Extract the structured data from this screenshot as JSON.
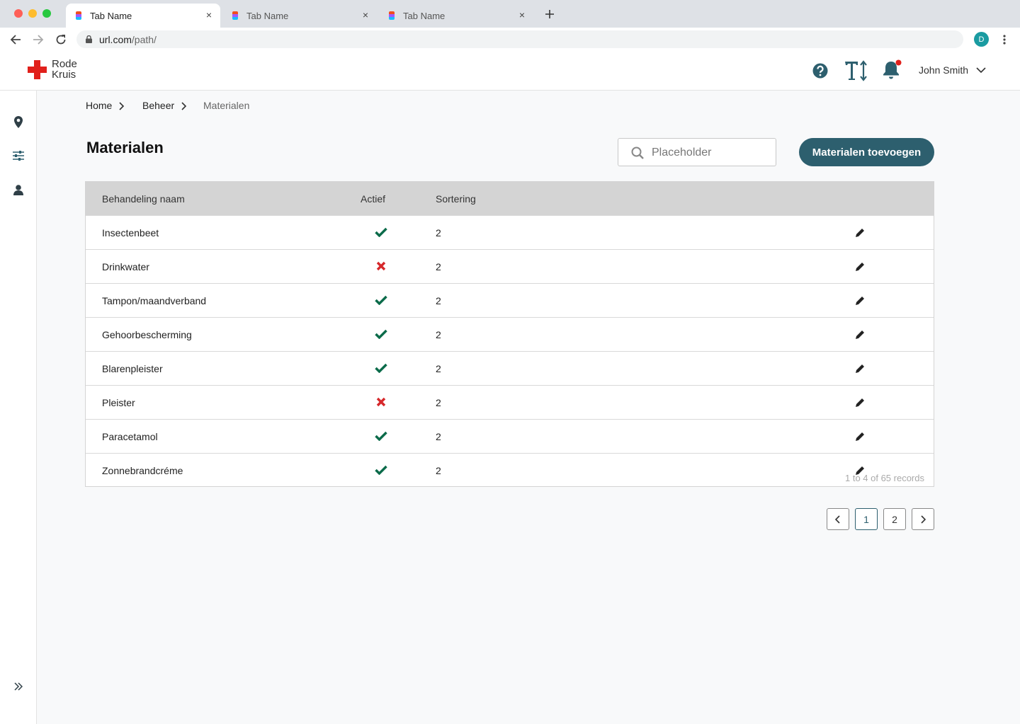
{
  "browser": {
    "tabs": [
      "Tab Name",
      "Tab Name",
      "Tab Name"
    ],
    "url_host": "url.com",
    "url_path": "/path/",
    "profile_initial": "D"
  },
  "header": {
    "logo_line1": "Rode",
    "logo_line2": "Kruis",
    "user": "John Smith"
  },
  "breadcrumb": [
    "Home",
    "Beheer",
    "Materialen"
  ],
  "page": {
    "title": "Materialen",
    "search_placeholder": "Placeholder",
    "add_button": "Materialen toevoegen"
  },
  "table": {
    "columns": [
      "Behandeling naam",
      "Actief",
      "Sortering"
    ],
    "rows": [
      {
        "name": "Insectenbeet",
        "active": true,
        "sort": 2
      },
      {
        "name": "Drinkwater",
        "active": false,
        "sort": 2
      },
      {
        "name": "Tampon/maandverband",
        "active": true,
        "sort": 2
      },
      {
        "name": "Gehoorbescherming",
        "active": true,
        "sort": 2
      },
      {
        "name": "Blarenpleister",
        "active": true,
        "sort": 2
      },
      {
        "name": "Pleister",
        "active": false,
        "sort": 2
      },
      {
        "name": "Paracetamol",
        "active": true,
        "sort": 2
      },
      {
        "name": "Zonnebrandcréme",
        "active": true,
        "sort": 2
      }
    ],
    "records": "1 to 4 of 65 records"
  },
  "pagination": {
    "pages": [
      1,
      2
    ],
    "current": 1
  }
}
